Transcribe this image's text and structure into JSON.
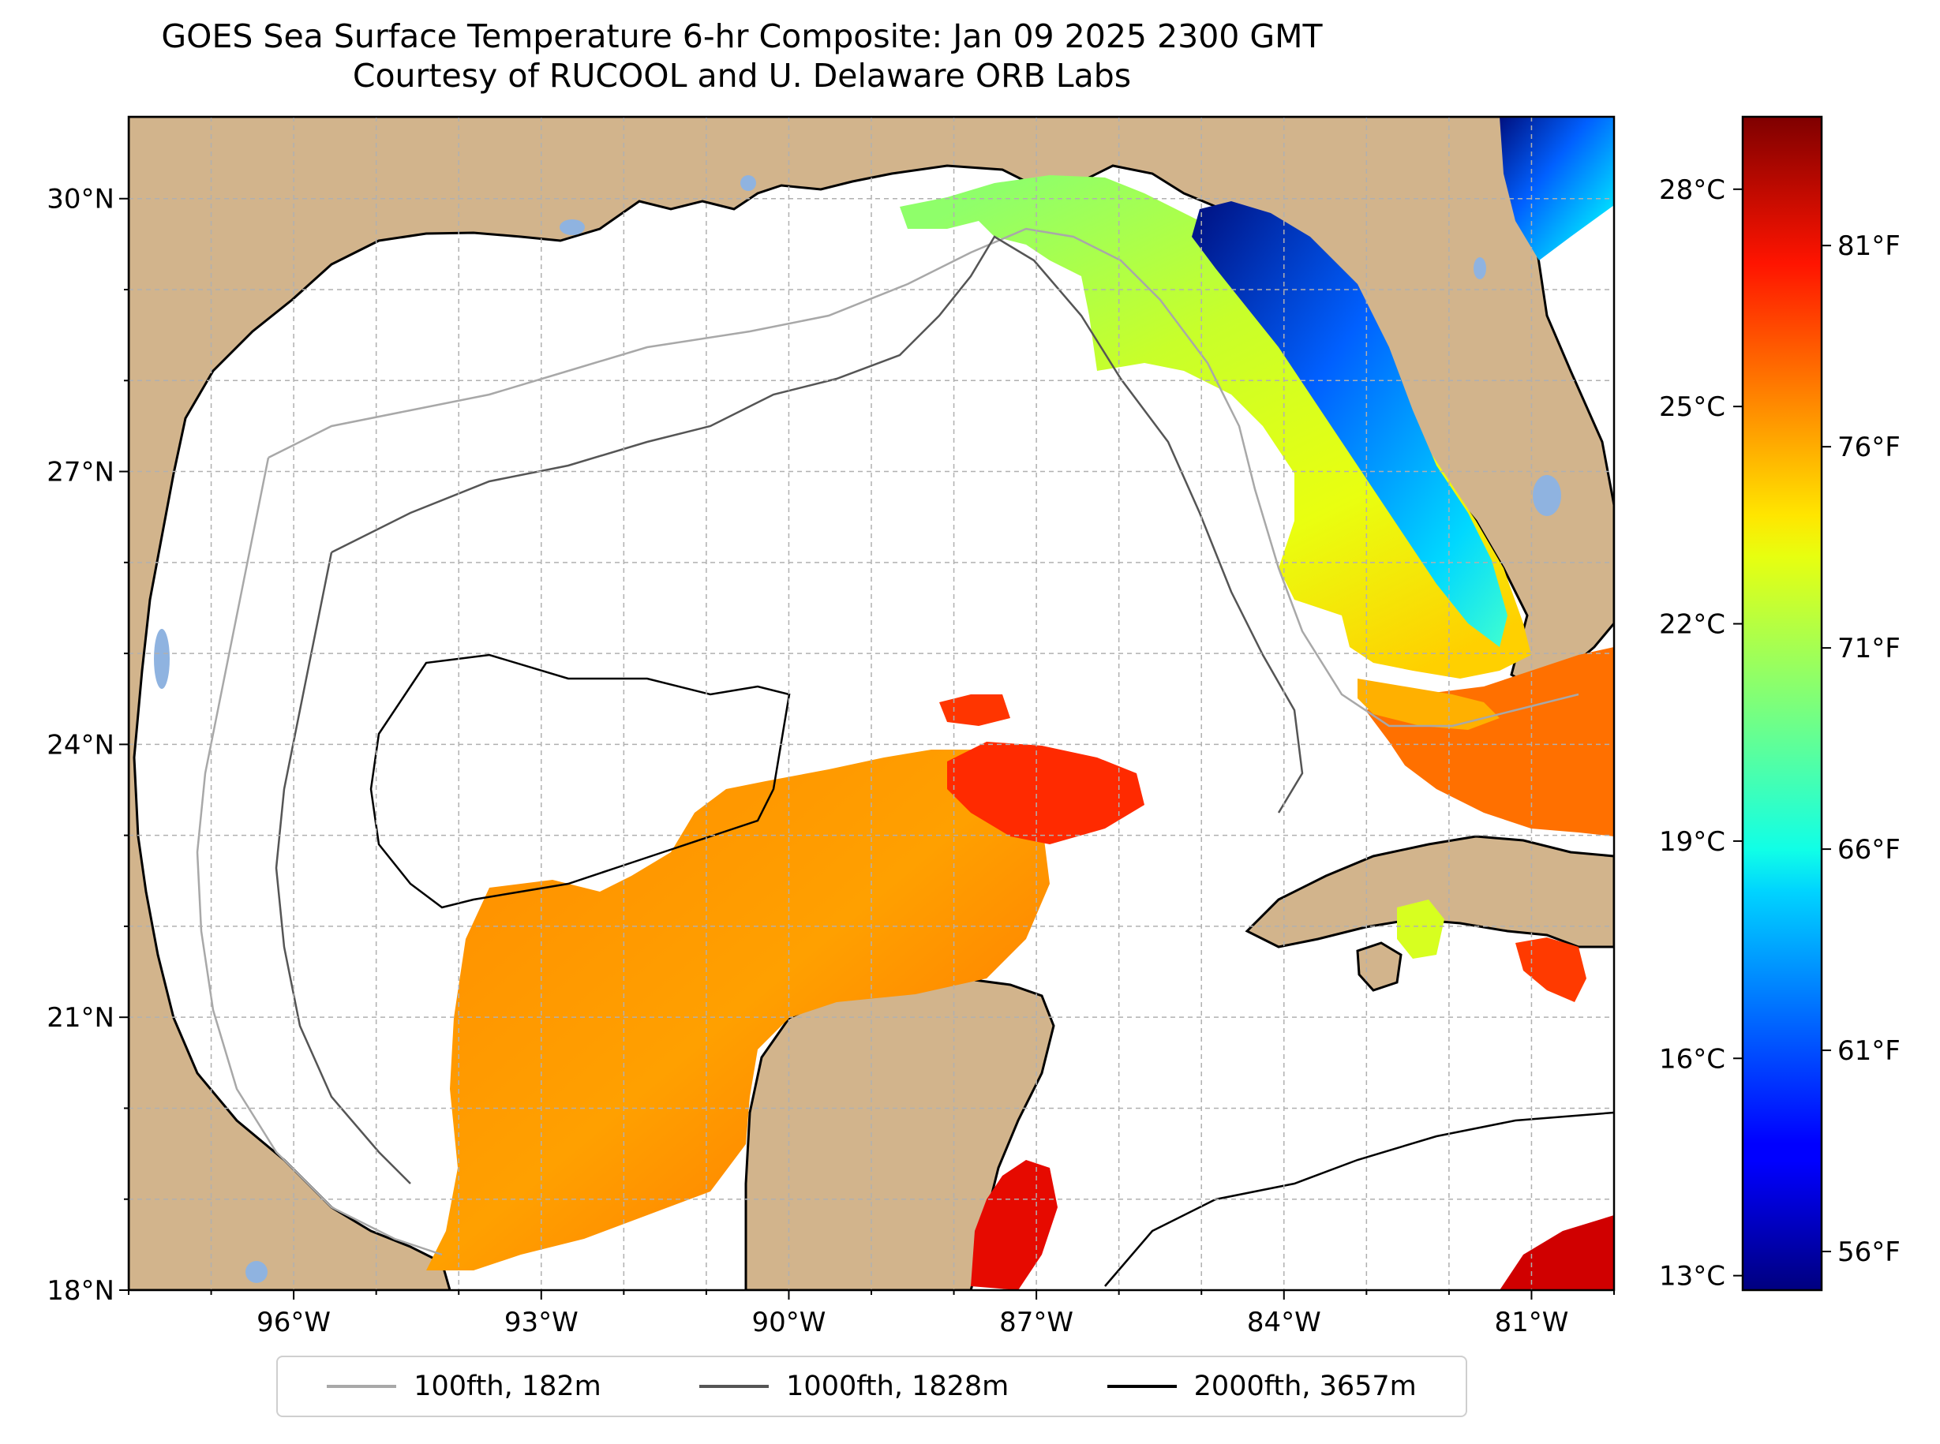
{
  "title": {
    "line1": "GOES Sea Surface Temperature 6-hr Composite: Jan 09 2025 2300 GMT",
    "line2": "Courtesy of RUCOOL and U. Delaware ORB Labs"
  },
  "axes": {
    "lon_ticks": [
      "96°W",
      "93°W",
      "90°W",
      "87°W",
      "84°W",
      "81°W"
    ],
    "lat_ticks": [
      "30°N",
      "27°N",
      "24°N",
      "21°N",
      "18°N"
    ]
  },
  "colorbar": {
    "celsius_ticks": [
      "28°C",
      "25°C",
      "22°C",
      "19°C",
      "16°C",
      "13°C"
    ],
    "fahrenheit_ticks": [
      "81°F",
      "76°F",
      "71°F",
      "66°F",
      "61°F",
      "56°F"
    ]
  },
  "legend": [
    {
      "label": "100fth, 182m",
      "color": "#a8a8a8"
    },
    {
      "label": "1000fth, 1828m",
      "color": "#555555"
    },
    {
      "label": "2000fth, 3657m",
      "color": "#000000"
    }
  ],
  "colors": {
    "land": "#d2b48c",
    "ocean_no_data": "#ffffff",
    "lakes": "#8fb3e0",
    "grid": "#b0b0b0"
  },
  "chart_data": {
    "type": "heatmap",
    "xlabel": "",
    "ylabel": "",
    "xlim": [
      -98,
      -80
    ],
    "ylim": [
      18,
      30.9
    ],
    "lon_ticks": [
      -96,
      -93,
      -90,
      -87,
      -84,
      -81
    ],
    "lat_ticks": [
      30,
      27,
      24,
      21,
      18
    ],
    "colorbar": {
      "colormap": "jet",
      "range_celsius": [
        12.8,
        29
      ],
      "celsius_ticks": [
        28,
        25,
        22,
        19,
        16,
        13
      ],
      "fahrenheit_ticks": [
        81,
        76,
        71,
        66,
        61,
        56
      ]
    },
    "grid": true
  }
}
